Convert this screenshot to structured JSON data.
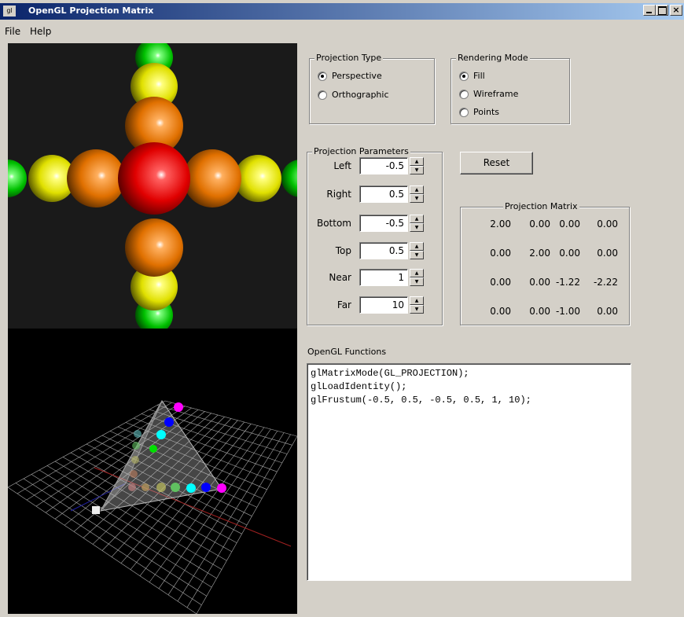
{
  "window": {
    "title": "OpenGL Projection Matrix"
  },
  "menu": [
    "File",
    "Help"
  ],
  "projection_type": {
    "title": "Projection Type",
    "options": [
      "Perspective",
      "Orthographic"
    ],
    "selected": 0
  },
  "rendering_mode": {
    "title": "Rendering Mode",
    "options": [
      "Fill",
      "Wireframe",
      "Points"
    ],
    "selected": 0
  },
  "parameters": {
    "title": "Projection Parameters",
    "rows": [
      {
        "label": "Left",
        "value": -0.5
      },
      {
        "label": "Right",
        "value": 0.5
      },
      {
        "label": "Bottom",
        "value": -0.5
      },
      {
        "label": "Top",
        "value": 0.5
      },
      {
        "label": "Near",
        "value": 1
      },
      {
        "label": "Far",
        "value": 10
      }
    ]
  },
  "reset_button": "Reset",
  "matrix": {
    "title": "Projection Matrix",
    "rows": [
      [
        "2.00",
        "0.00",
        "0.00",
        "0.00"
      ],
      [
        "0.00",
        "2.00",
        "0.00",
        "0.00"
      ],
      [
        "0.00",
        "0.00",
        "-1.22",
        "-2.22"
      ],
      [
        "0.00",
        "0.00",
        "-1.00",
        "0.00"
      ]
    ]
  },
  "functions": {
    "title": "OpenGL Functions",
    "lines": [
      "glMatrixMode(GL_PROJECTION);",
      "glLoadIdentity();",
      "glFrustum(-0.5, 0.5, -0.5, 0.5, 1, 10);"
    ]
  }
}
